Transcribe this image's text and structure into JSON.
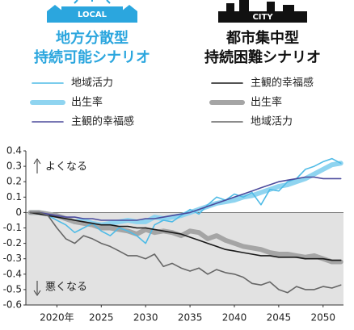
{
  "chart_data": {
    "type": "line",
    "scenarios": [
      {
        "badge": "LOCAL",
        "title": [
          "地方分散型",
          "持続可能シナリオ"
        ],
        "color": "#2ba6de"
      },
      {
        "badge": "CITY",
        "title": [
          "都市集中型",
          "持続困難シナリオ"
        ],
        "color": "#111111"
      }
    ],
    "annotations": [
      "よくなる",
      "悪くなる"
    ],
    "x": [
      2017,
      2018,
      2019,
      2020,
      2021,
      2022,
      2023,
      2024,
      2025,
      2026,
      2027,
      2028,
      2029,
      2030,
      2031,
      2032,
      2033,
      2034,
      2035,
      2036,
      2037,
      2038,
      2039,
      2040,
      2041,
      2042,
      2043,
      2044,
      2045,
      2046,
      2047,
      2048,
      2049,
      2050,
      2051,
      2052
    ],
    "series": [
      {
        "name": "地域活力",
        "color": "#4fbbe6",
        "line_width": 1.6,
        "values": [
          0,
          0,
          -0.02,
          -0.05,
          -0.08,
          -0.13,
          -0.1,
          -0.07,
          -0.12,
          -0.15,
          -0.1,
          -0.12,
          -0.15,
          -0.2,
          -0.08,
          -0.05,
          -0.06,
          -0.02,
          0.02,
          -0.01,
          0.05,
          0.1,
          0.08,
          0.12,
          0.1,
          0.13,
          0.05,
          0.15,
          0.14,
          0.2,
          0.22,
          0.28,
          0.3,
          0.33,
          0.35,
          0.32
        ]
      },
      {
        "name": "出生率",
        "color": "#8fd4f0",
        "line_width": 6,
        "values": [
          0,
          0,
          -0.01,
          -0.02,
          -0.04,
          -0.06,
          -0.05,
          -0.07,
          -0.08,
          -0.07,
          -0.06,
          -0.05,
          -0.06,
          -0.06,
          -0.03,
          -0.04,
          -0.03,
          -0.02,
          0,
          0.02,
          0.04,
          0.06,
          0.07,
          0.08,
          0.1,
          0.11,
          0.13,
          0.15,
          0.17,
          0.18,
          0.2,
          0.22,
          0.25,
          0.28,
          0.31,
          0.32
        ]
      },
      {
        "name": "主観的幸福感",
        "color": "#4b4a9c",
        "line_width": 1.6,
        "values": [
          0,
          0,
          -0.01,
          -0.02,
          -0.03,
          -0.03,
          -0.04,
          -0.04,
          -0.05,
          -0.05,
          -0.05,
          -0.05,
          -0.05,
          -0.04,
          -0.04,
          -0.03,
          -0.02,
          -0.01,
          0,
          0.02,
          0.04,
          0.06,
          0.08,
          0.1,
          0.12,
          0.14,
          0.16,
          0.18,
          0.2,
          0.21,
          0.22,
          0.23,
          0.23,
          0.22,
          0.22,
          0.22
        ]
      },
      {
        "name": "主観的幸福感",
        "color": "#1a1a1a",
        "line_width": 1.6,
        "values": [
          0,
          -0.01,
          -0.02,
          -0.03,
          -0.04,
          -0.05,
          -0.06,
          -0.07,
          -0.08,
          -0.08,
          -0.09,
          -0.09,
          -0.1,
          -0.1,
          -0.11,
          -0.12,
          -0.13,
          -0.14,
          -0.16,
          -0.18,
          -0.2,
          -0.22,
          -0.24,
          -0.25,
          -0.26,
          -0.27,
          -0.28,
          -0.28,
          -0.29,
          -0.29,
          -0.29,
          -0.3,
          -0.3,
          -0.3,
          -0.31,
          -0.31
        ]
      },
      {
        "name": "出生率",
        "color": "#a5a5a5",
        "line_width": 6,
        "values": [
          0,
          0,
          -0.01,
          -0.02,
          -0.04,
          -0.06,
          -0.07,
          -0.08,
          -0.1,
          -0.1,
          -0.11,
          -0.12,
          -0.14,
          -0.11,
          -0.13,
          -0.12,
          -0.13,
          -0.15,
          -0.12,
          -0.13,
          -0.17,
          -0.15,
          -0.18,
          -0.2,
          -0.22,
          -0.23,
          -0.24,
          -0.26,
          -0.27,
          -0.27,
          -0.28,
          -0.29,
          -0.28,
          -0.3,
          -0.32,
          -0.32
        ]
      },
      {
        "name": "地域活力",
        "color": "#666666",
        "line_width": 1.6,
        "values": [
          0,
          0,
          -0.02,
          -0.1,
          -0.17,
          -0.2,
          -0.15,
          -0.17,
          -0.2,
          -0.22,
          -0.25,
          -0.28,
          -0.28,
          -0.3,
          -0.27,
          -0.35,
          -0.33,
          -0.36,
          -0.38,
          -0.36,
          -0.4,
          -0.37,
          -0.39,
          -0.4,
          -0.42,
          -0.46,
          -0.47,
          -0.45,
          -0.5,
          -0.52,
          -0.48,
          -0.5,
          -0.5,
          -0.48,
          -0.49,
          -0.47
        ]
      }
    ],
    "xlim": [
      2016.5,
      2052.3
    ],
    "xticks": [
      {
        "value": 2020,
        "label": "2020年"
      },
      2025,
      2030,
      2035,
      2040,
      2045,
      2050
    ],
    "ylim": [
      -0.6,
      0.4
    ],
    "yticks": [
      0.4,
      0.3,
      0.2,
      0.1,
      0,
      -0.1,
      -0.2,
      -0.3,
      -0.4,
      -0.5,
      -0.6
    ],
    "negative_shading": true
  }
}
